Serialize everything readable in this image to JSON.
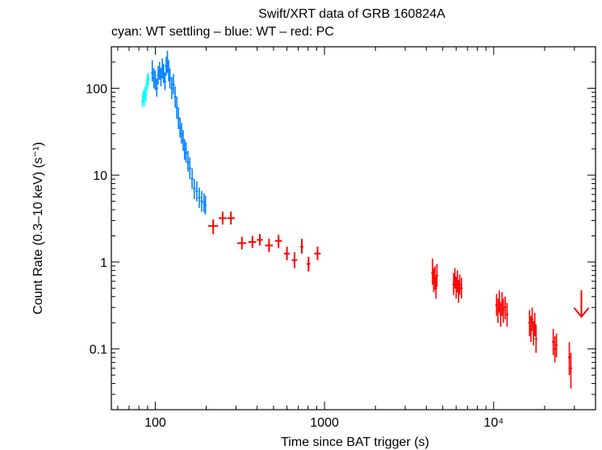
{
  "chart_data": {
    "type": "scatter",
    "title": "Swift/XRT data of GRB 160824A",
    "subtitle": "cyan: WT settling – blue: WT – red: PC",
    "xlabel": "Time since BAT trigger (s)",
    "ylabel": "Count Rate (0.3–10 keV) (s⁻¹)",
    "xscale": "log",
    "yscale": "log",
    "xlim": [
      55,
      40000
    ],
    "ylim": [
      0.02,
      300
    ],
    "x_ticks": [
      {
        "value": 100,
        "label": "100"
      },
      {
        "value": 1000,
        "label": "1000"
      },
      {
        "value": 10000,
        "label": "10⁴"
      }
    ],
    "y_ticks": [
      {
        "value": 0.1,
        "label": "0.1"
      },
      {
        "value": 1,
        "label": "1"
      },
      {
        "value": 10,
        "label": "10"
      },
      {
        "value": 100,
        "label": "100"
      }
    ],
    "colors": {
      "wt_settling": "#00ffff",
      "wt": "#0080ff",
      "pc": "#ff0000",
      "axis": "#000000"
    },
    "series": [
      {
        "name": "WT settling",
        "color": "#00ffff",
        "points": [
          {
            "x": 84,
            "y": 70,
            "ylo": 60,
            "yhi": 85
          },
          {
            "x": 85,
            "y": 80,
            "ylo": 68,
            "yhi": 95
          },
          {
            "x": 86,
            "y": 75,
            "ylo": 62,
            "yhi": 92
          },
          {
            "x": 87,
            "y": 90,
            "ylo": 75,
            "yhi": 105
          },
          {
            "x": 88,
            "y": 85,
            "ylo": 70,
            "yhi": 100
          },
          {
            "x": 89,
            "y": 110,
            "ylo": 92,
            "yhi": 128
          },
          {
            "x": 90,
            "y": 120,
            "ylo": 100,
            "yhi": 145
          },
          {
            "x": 91,
            "y": 130,
            "ylo": 110,
            "yhi": 150
          }
        ]
      },
      {
        "name": "WT",
        "color": "#0080ff",
        "points": [
          {
            "x": 96,
            "y": 150,
            "ylo": 120,
            "yhi": 210
          },
          {
            "x": 98,
            "y": 130,
            "ylo": 100,
            "yhi": 170
          },
          {
            "x": 100,
            "y": 120,
            "ylo": 95,
            "yhi": 160
          },
          {
            "x": 102,
            "y": 100,
            "ylo": 80,
            "yhi": 130
          },
          {
            "x": 104,
            "y": 140,
            "ylo": 110,
            "yhi": 180
          },
          {
            "x": 106,
            "y": 160,
            "ylo": 125,
            "yhi": 200
          },
          {
            "x": 108,
            "y": 135,
            "ylo": 105,
            "yhi": 170
          },
          {
            "x": 110,
            "y": 170,
            "ylo": 130,
            "yhi": 220
          },
          {
            "x": 112,
            "y": 150,
            "ylo": 115,
            "yhi": 190
          },
          {
            "x": 114,
            "y": 120,
            "ylo": 95,
            "yhi": 150
          },
          {
            "x": 116,
            "y": 180,
            "ylo": 140,
            "yhi": 230
          },
          {
            "x": 118,
            "y": 200,
            "ylo": 150,
            "yhi": 270
          },
          {
            "x": 120,
            "y": 160,
            "ylo": 120,
            "yhi": 210
          },
          {
            "x": 122,
            "y": 130,
            "ylo": 100,
            "yhi": 170
          },
          {
            "x": 125,
            "y": 100,
            "ylo": 75,
            "yhi": 135
          },
          {
            "x": 128,
            "y": 110,
            "ylo": 85,
            "yhi": 145
          },
          {
            "x": 131,
            "y": 80,
            "ylo": 60,
            "yhi": 105
          },
          {
            "x": 134,
            "y": 60,
            "ylo": 45,
            "yhi": 80
          },
          {
            "x": 137,
            "y": 45,
            "ylo": 34,
            "yhi": 60
          },
          {
            "x": 140,
            "y": 35,
            "ylo": 27,
            "yhi": 46
          },
          {
            "x": 143,
            "y": 30,
            "ylo": 23,
            "yhi": 40
          },
          {
            "x": 146,
            "y": 25,
            "ylo": 19,
            "yhi": 33
          },
          {
            "x": 149,
            "y": 20,
            "ylo": 15,
            "yhi": 26
          },
          {
            "x": 152,
            "y": 18,
            "ylo": 14,
            "yhi": 24
          },
          {
            "x": 156,
            "y": 14,
            "ylo": 11,
            "yhi": 19
          },
          {
            "x": 160,
            "y": 12,
            "ylo": 9,
            "yhi": 16
          },
          {
            "x": 165,
            "y": 9,
            "ylo": 7,
            "yhi": 12
          },
          {
            "x": 170,
            "y": 7,
            "ylo": 5.3,
            "yhi": 9
          },
          {
            "x": 176,
            "y": 6.5,
            "ylo": 5,
            "yhi": 8.5
          },
          {
            "x": 182,
            "y": 5.5,
            "ylo": 4.2,
            "yhi": 7.2
          },
          {
            "x": 188,
            "y": 5,
            "ylo": 3.8,
            "yhi": 6.6
          },
          {
            "x": 194,
            "y": 4.8,
            "ylo": 3.7,
            "yhi": 6.2
          },
          {
            "x": 198,
            "y": 4.5,
            "ylo": 3.5,
            "yhi": 5.8
          }
        ]
      },
      {
        "name": "PC",
        "color": "#ff0000",
        "points": [
          {
            "x": 220,
            "y": 2.6,
            "xlo": 205,
            "xhi": 235,
            "ylo": 2.1,
            "yhi": 3.1
          },
          {
            "x": 250,
            "y": 3.2,
            "xlo": 237,
            "xhi": 265,
            "ylo": 2.7,
            "yhi": 3.8
          },
          {
            "x": 280,
            "y": 3.2,
            "xlo": 267,
            "xhi": 295,
            "ylo": 2.7,
            "yhi": 3.8
          },
          {
            "x": 325,
            "y": 1.65,
            "xlo": 305,
            "xhi": 345,
            "ylo": 1.4,
            "yhi": 1.95
          },
          {
            "x": 375,
            "y": 1.7,
            "xlo": 355,
            "xhi": 395,
            "ylo": 1.45,
            "yhi": 2.0
          },
          {
            "x": 415,
            "y": 1.8,
            "xlo": 398,
            "xhi": 432,
            "ylo": 1.55,
            "yhi": 2.1
          },
          {
            "x": 470,
            "y": 1.55,
            "xlo": 445,
            "xhi": 495,
            "ylo": 1.3,
            "yhi": 1.85
          },
          {
            "x": 535,
            "y": 1.75,
            "xlo": 510,
            "xhi": 560,
            "ylo": 1.45,
            "yhi": 2.05
          },
          {
            "x": 600,
            "y": 1.25,
            "xlo": 575,
            "xhi": 625,
            "ylo": 1.05,
            "yhi": 1.5
          },
          {
            "x": 665,
            "y": 1.05,
            "xlo": 640,
            "xhi": 690,
            "ylo": 0.85,
            "yhi": 1.3
          },
          {
            "x": 735,
            "y": 1.5,
            "xlo": 720,
            "xhi": 750,
            "ylo": 1.25,
            "yhi": 1.85
          },
          {
            "x": 805,
            "y": 0.95,
            "xlo": 785,
            "xhi": 825,
            "ylo": 0.78,
            "yhi": 1.15
          },
          {
            "x": 910,
            "y": 1.25,
            "xlo": 870,
            "xhi": 950,
            "ylo": 1.05,
            "yhi": 1.5
          },
          {
            "x": 4350,
            "y": 0.75,
            "ylo": 0.55,
            "yhi": 1.1
          },
          {
            "x": 4420,
            "y": 0.6,
            "ylo": 0.45,
            "yhi": 0.85
          },
          {
            "x": 4500,
            "y": 0.65,
            "ylo": 0.48,
            "yhi": 0.9
          },
          {
            "x": 4560,
            "y": 0.5,
            "ylo": 0.38,
            "yhi": 0.68
          },
          {
            "x": 4620,
            "y": 0.7,
            "ylo": 0.52,
            "yhi": 0.95
          },
          {
            "x": 5800,
            "y": 0.55,
            "ylo": 0.42,
            "yhi": 0.75
          },
          {
            "x": 5900,
            "y": 0.65,
            "ylo": 0.5,
            "yhi": 0.85
          },
          {
            "x": 6000,
            "y": 0.5,
            "ylo": 0.38,
            "yhi": 0.68
          },
          {
            "x": 6100,
            "y": 0.6,
            "ylo": 0.45,
            "yhi": 0.8
          },
          {
            "x": 6200,
            "y": 0.45,
            "ylo": 0.34,
            "yhi": 0.62
          },
          {
            "x": 6300,
            "y": 0.55,
            "ylo": 0.42,
            "yhi": 0.72
          },
          {
            "x": 6450,
            "y": 0.5,
            "ylo": 0.38,
            "yhi": 0.66
          },
          {
            "x": 10400,
            "y": 0.32,
            "ylo": 0.24,
            "yhi": 0.43
          },
          {
            "x": 10600,
            "y": 0.28,
            "ylo": 0.2,
            "yhi": 0.38
          },
          {
            "x": 10800,
            "y": 0.35,
            "ylo": 0.26,
            "yhi": 0.47
          },
          {
            "x": 11000,
            "y": 0.25,
            "ylo": 0.18,
            "yhi": 0.34
          },
          {
            "x": 11200,
            "y": 0.33,
            "ylo": 0.24,
            "yhi": 0.45
          },
          {
            "x": 11400,
            "y": 0.28,
            "ylo": 0.2,
            "yhi": 0.38
          },
          {
            "x": 11700,
            "y": 0.3,
            "ylo": 0.22,
            "yhi": 0.4
          },
          {
            "x": 12000,
            "y": 0.25,
            "ylo": 0.18,
            "yhi": 0.34
          },
          {
            "x": 16300,
            "y": 0.2,
            "ylo": 0.14,
            "yhi": 0.28
          },
          {
            "x": 16600,
            "y": 0.17,
            "ylo": 0.12,
            "yhi": 0.24
          },
          {
            "x": 16900,
            "y": 0.22,
            "ylo": 0.16,
            "yhi": 0.3
          },
          {
            "x": 17200,
            "y": 0.15,
            "ylo": 0.11,
            "yhi": 0.21
          },
          {
            "x": 17500,
            "y": 0.19,
            "ylo": 0.14,
            "yhi": 0.26
          },
          {
            "x": 17800,
            "y": 0.13,
            "ylo": 0.09,
            "yhi": 0.19
          },
          {
            "x": 22500,
            "y": 0.12,
            "ylo": 0.085,
            "yhi": 0.17
          },
          {
            "x": 23000,
            "y": 0.1,
            "ylo": 0.07,
            "yhi": 0.14
          },
          {
            "x": 23500,
            "y": 0.11,
            "ylo": 0.08,
            "yhi": 0.15
          },
          {
            "x": 28000,
            "y": 0.08,
            "ylo": 0.05,
            "yhi": 0.12
          },
          {
            "x": 28600,
            "y": 0.06,
            "ylo": 0.035,
            "yhi": 0.09
          }
        ],
        "upper_limits": [
          {
            "x": 33000,
            "y": 0.25
          }
        ]
      }
    ]
  }
}
